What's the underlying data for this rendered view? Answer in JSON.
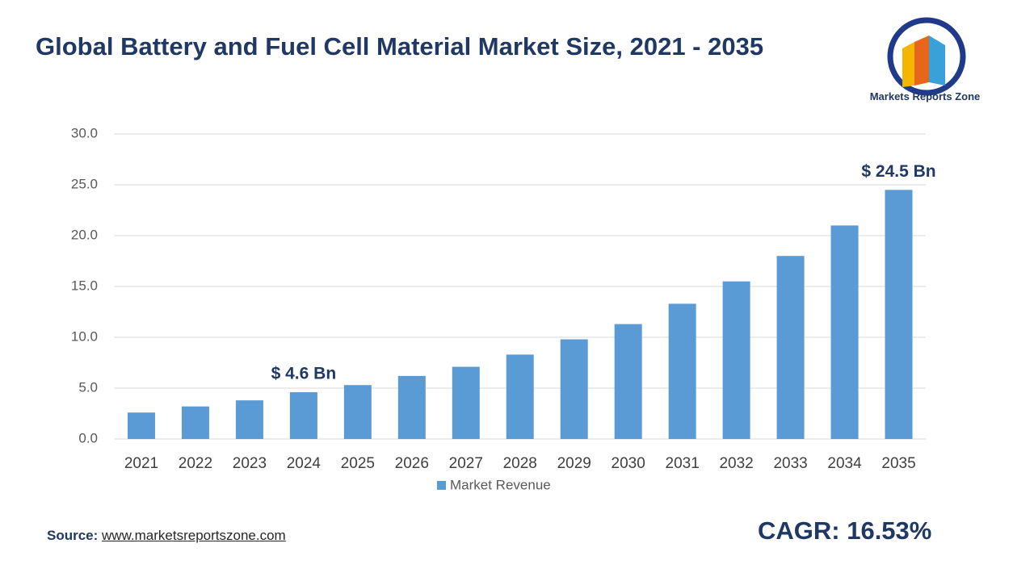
{
  "title": "Global Battery and Fuel Cell Material Market Size, 2021 - 2035",
  "logo": "Markets Reports Zone",
  "source": {
    "label": "Source:",
    "url": "www.marketsreportszone.com"
  },
  "cagr": "CAGR: 16.53%",
  "chart_data": {
    "type": "bar",
    "categories": [
      "2021",
      "2022",
      "2023",
      "2024",
      "2025",
      "2026",
      "2027",
      "2028",
      "2029",
      "2030",
      "2031",
      "2032",
      "2033",
      "2034",
      "2035"
    ],
    "series": [
      {
        "name": "Market Revenue",
        "color": "#5b9bd5",
        "values": [
          2.6,
          3.2,
          3.8,
          4.6,
          5.3,
          6.2,
          7.1,
          8.3,
          9.8,
          11.3,
          13.3,
          15.5,
          18.0,
          21.0,
          24.5
        ],
        "value_labels": [
          null,
          null,
          null,
          "$ 4.6 Bn",
          null,
          null,
          null,
          null,
          null,
          null,
          null,
          null,
          null,
          null,
          "$ 24.5 Bn"
        ]
      }
    ],
    "ylim": [
      0,
      30
    ],
    "yticks": [
      {
        "value": 0,
        "label": "0.0"
      },
      {
        "value": 5,
        "label": "5.0"
      },
      {
        "value": 10,
        "label": "10.0"
      },
      {
        "value": 15,
        "label": "15.0"
      },
      {
        "value": 20,
        "label": "20.0"
      },
      {
        "value": 25,
        "label": "25.0"
      },
      {
        "value": 30,
        "label": "30.0"
      }
    ],
    "grid": true,
    "legend": "bottom"
  }
}
